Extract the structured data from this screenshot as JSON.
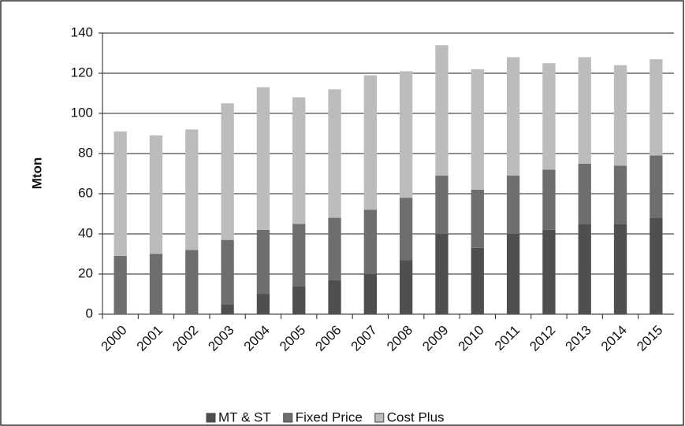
{
  "chart_data": {
    "type": "stacked_bar",
    "y_label": "Mton",
    "categories": [
      "2000",
      "2001",
      "2002",
      "2003",
      "2004",
      "2005",
      "2006",
      "2007",
      "2008",
      "2009",
      "2010",
      "2011",
      "2012",
      "2013",
      "2014",
      "2015"
    ],
    "series": [
      {
        "name": "MT & ST",
        "color": "#4f4f4f",
        "values": [
          0,
          0,
          0,
          5,
          10,
          14,
          17,
          20,
          27,
          40,
          33,
          40,
          42,
          45,
          45,
          48
        ]
      },
      {
        "name": "Fixed Price",
        "color": "#6e6e6e",
        "values": [
          29,
          30,
          32,
          32,
          32,
          31,
          31,
          32,
          31,
          29,
          29,
          29,
          30,
          30,
          29,
          31
        ]
      },
      {
        "name": "Cost Plus",
        "color": "#bcbcbc",
        "values": [
          62,
          59,
          60,
          68,
          71,
          63,
          64,
          67,
          63,
          65,
          60,
          59,
          53,
          53,
          50,
          48
        ]
      }
    ],
    "ylim": [
      0,
      140
    ],
    "yticks": [
      0,
      20,
      40,
      60,
      80,
      100,
      120,
      140
    ],
    "grid": true,
    "legend": "bottom"
  }
}
